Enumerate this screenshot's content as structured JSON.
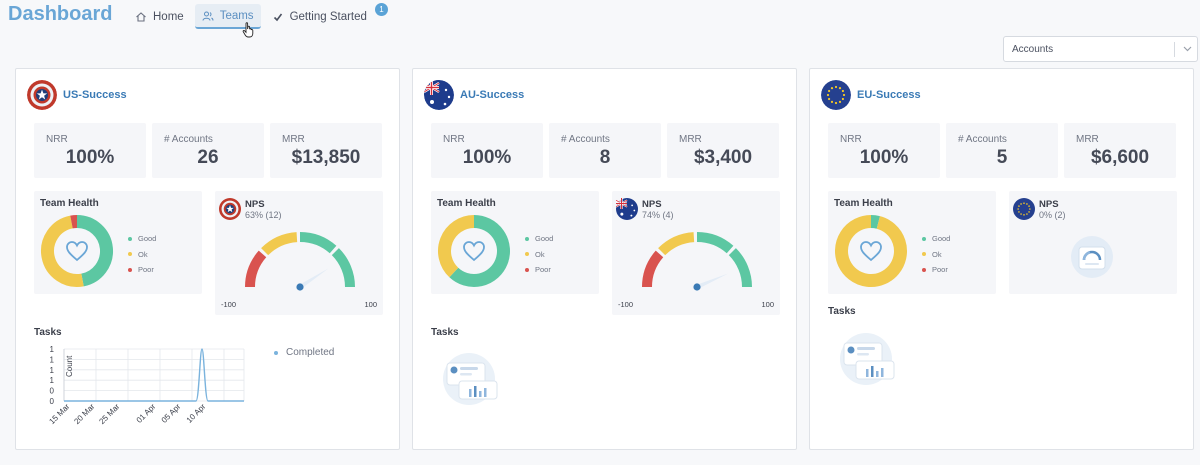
{
  "header": {
    "app_title": "Dashboard",
    "nav": [
      {
        "label": "Home",
        "icon": "home-icon"
      },
      {
        "label": "Teams",
        "icon": "users-icon",
        "active": true
      },
      {
        "label": "Getting Started",
        "icon": "check-icon",
        "badge": "1"
      }
    ]
  },
  "filter": {
    "selected": "Accounts"
  },
  "colors": {
    "good": "#5cc7a2",
    "ok": "#f1c94e",
    "poor": "#d9534f",
    "accent": "#3a7ab5"
  },
  "teams": [
    {
      "name": "US-Success",
      "flag": "us-shield-flag",
      "metrics": [
        {
          "label": "NRR",
          "value": "100%"
        },
        {
          "label": "# Accounts",
          "value": "26"
        },
        {
          "label": "MRR",
          "value": "$13,850"
        }
      ],
      "health": {
        "title": "Team Health",
        "legend": [
          "Good",
          "Ok",
          "Poor"
        ],
        "good": 0.47,
        "ok": 0.5,
        "poor": 0.03
      },
      "nps": {
        "title": "NPS",
        "subtitle": "63% (12)",
        "min": "-100",
        "max": "100",
        "value": 63
      },
      "tasks": {
        "title": "Tasks",
        "legend": "Completed"
      }
    },
    {
      "name": "AU-Success",
      "flag": "australia-flag",
      "metrics": [
        {
          "label": "NRR",
          "value": "100%"
        },
        {
          "label": "# Accounts",
          "value": "8"
        },
        {
          "label": "MRR",
          "value": "$3,400"
        }
      ],
      "health": {
        "title": "Team Health",
        "legend": [
          "Good",
          "Ok",
          "Poor"
        ],
        "good": 0.62,
        "ok": 0.38,
        "poor": 0
      },
      "nps": {
        "title": "NPS",
        "subtitle": "74% (4)",
        "min": "-100",
        "max": "100",
        "value": 74
      },
      "tasks": {
        "title": "Tasks"
      }
    },
    {
      "name": "EU-Success",
      "flag": "eu-flag",
      "metrics": [
        {
          "label": "NRR",
          "value": "100%"
        },
        {
          "label": "# Accounts",
          "value": "5"
        },
        {
          "label": "MRR",
          "value": "$6,600"
        }
      ],
      "health": {
        "title": "Team Health",
        "legend": [
          "Good",
          "Ok",
          "Poor"
        ],
        "good": 0.04,
        "ok": 0.96,
        "poor": 0
      },
      "nps": {
        "title": "NPS",
        "subtitle": "0% (2)"
      },
      "tasks": {
        "title": "Tasks"
      }
    }
  ],
  "chart_data": {
    "type": "line",
    "title": "Tasks",
    "ylabel": "Count",
    "xlabel": "",
    "categories": [
      "15 Mar",
      "20 Mar",
      "25 Mar",
      "01 Apr",
      "05 Apr",
      "10 Apr"
    ],
    "y_ticks": [
      "0",
      "0",
      "1",
      "1",
      "1",
      "1"
    ],
    "ylim": [
      0,
      1
    ],
    "series": [
      {
        "name": "Completed",
        "x": [
          "15 Mar",
          "01 Apr",
          "03 Apr",
          "05 Apr",
          "10 Apr",
          "13 Apr"
        ],
        "values": [
          0,
          0,
          0,
          1,
          0,
          0
        ]
      }
    ]
  }
}
